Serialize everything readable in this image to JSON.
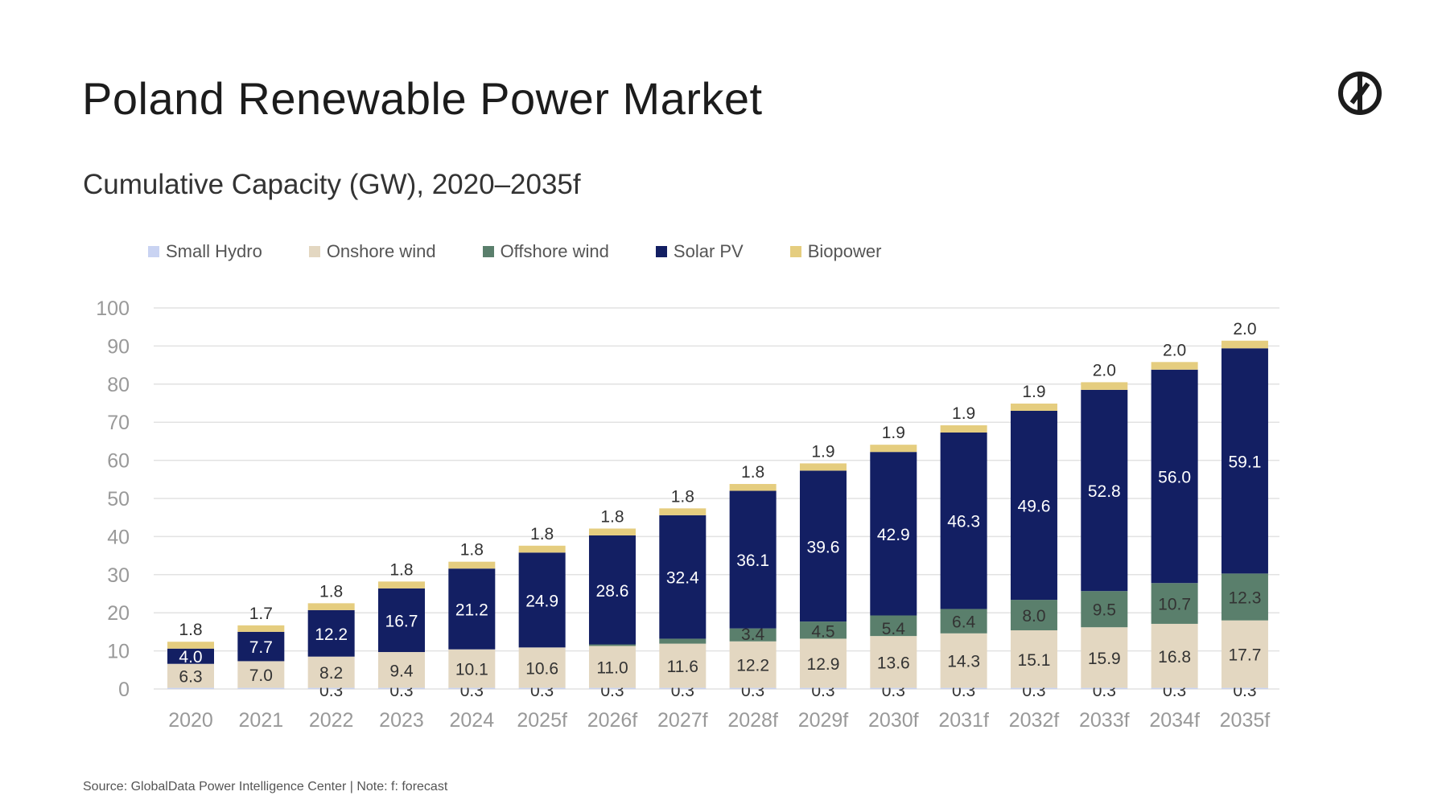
{
  "header": {
    "title": "Poland Renewable Power Market",
    "subtitle": "Cumulative Capacity (GW), 2020–2035f",
    "logo": "globaldata-logo-icon"
  },
  "footer": {
    "source": "Source: GlobalData Power Intelligence Center | Note: f: forecast"
  },
  "chart_data": {
    "type": "bar",
    "stacked": true,
    "title": "Cumulative Capacity (GW), 2020–2035f",
    "xlabel": "",
    "ylabel": "",
    "ylim": [
      0,
      100
    ],
    "yticks": [
      "0",
      "10",
      "20",
      "30",
      "40",
      "50",
      "60",
      "70",
      "80",
      "90",
      "100"
    ],
    "grid": true,
    "legend_position": "top",
    "categories": [
      "2020",
      "2021",
      "2022",
      "2023",
      "2024",
      "2025f",
      "2026f",
      "2027f",
      "2028f",
      "2029f",
      "2030f",
      "2031f",
      "2032f",
      "2033f",
      "2034f",
      "2035f"
    ],
    "series": [
      {
        "name": "Small Hydro",
        "color": "#c9d3f2",
        "values": [
          0.3,
          0.3,
          0.3,
          0.3,
          0.3,
          0.3,
          0.3,
          0.3,
          0.3,
          0.3,
          0.3,
          0.3,
          0.3,
          0.3,
          0.3,
          0.3
        ],
        "labels": [
          "",
          "",
          "0.3",
          "0.3",
          "0.3",
          "0.3",
          "0.3",
          "0.3",
          "0.3",
          "0.3",
          "0.3",
          "0.3",
          "0.3",
          "0.3",
          "0.3",
          "0.3"
        ]
      },
      {
        "name": "Onshore wind",
        "color": "#e3d7c1",
        "values": [
          6.3,
          7.0,
          8.2,
          9.4,
          10.1,
          10.6,
          11.0,
          11.6,
          12.2,
          12.9,
          13.6,
          14.3,
          15.1,
          15.9,
          16.8,
          17.7
        ],
        "labels": [
          "6.3",
          "7.0",
          "8.2",
          "9.4",
          "10.1",
          "10.6",
          "11.0",
          "11.6",
          "12.2",
          "12.9",
          "13.6",
          "14.3",
          "15.1",
          "15.9",
          "16.8",
          "17.7"
        ]
      },
      {
        "name": "Offshore wind",
        "color": "#5a7f6c",
        "values": [
          0,
          0,
          0,
          0,
          0,
          0,
          0.4,
          1.3,
          3.4,
          4.5,
          5.4,
          6.4,
          8.0,
          9.5,
          10.7,
          12.3
        ],
        "labels": [
          "",
          "",
          "",
          "",
          "",
          "",
          "",
          "",
          "3.4",
          "4.5",
          "5.4",
          "6.4",
          "8.0",
          "9.5",
          "10.7",
          "12.3"
        ]
      },
      {
        "name": "Solar PV",
        "color": "#131f63",
        "values": [
          4.0,
          7.7,
          12.2,
          16.7,
          21.2,
          24.9,
          28.6,
          32.4,
          36.1,
          39.6,
          42.9,
          46.3,
          49.6,
          52.8,
          56.0,
          59.1
        ],
        "labels": [
          "4.0",
          "7.7",
          "12.2",
          "16.7",
          "21.2",
          "24.9",
          "28.6",
          "32.4",
          "36.1",
          "39.6",
          "42.9",
          "46.3",
          "49.6",
          "52.8",
          "56.0",
          "59.1"
        ]
      },
      {
        "name": "Biopower",
        "color": "#e5cd7f",
        "values": [
          1.8,
          1.7,
          1.8,
          1.8,
          1.8,
          1.8,
          1.8,
          1.8,
          1.8,
          1.9,
          1.9,
          1.9,
          1.9,
          2.0,
          2.0,
          2.0
        ],
        "labels": [
          "1.8",
          "1.7",
          "1.8",
          "1.8",
          "1.8",
          "1.8",
          "1.8",
          "1.8",
          "1.8",
          "1.9",
          "1.9",
          "1.9",
          "1.9",
          "2.0",
          "2.0",
          "2.0"
        ]
      }
    ]
  }
}
